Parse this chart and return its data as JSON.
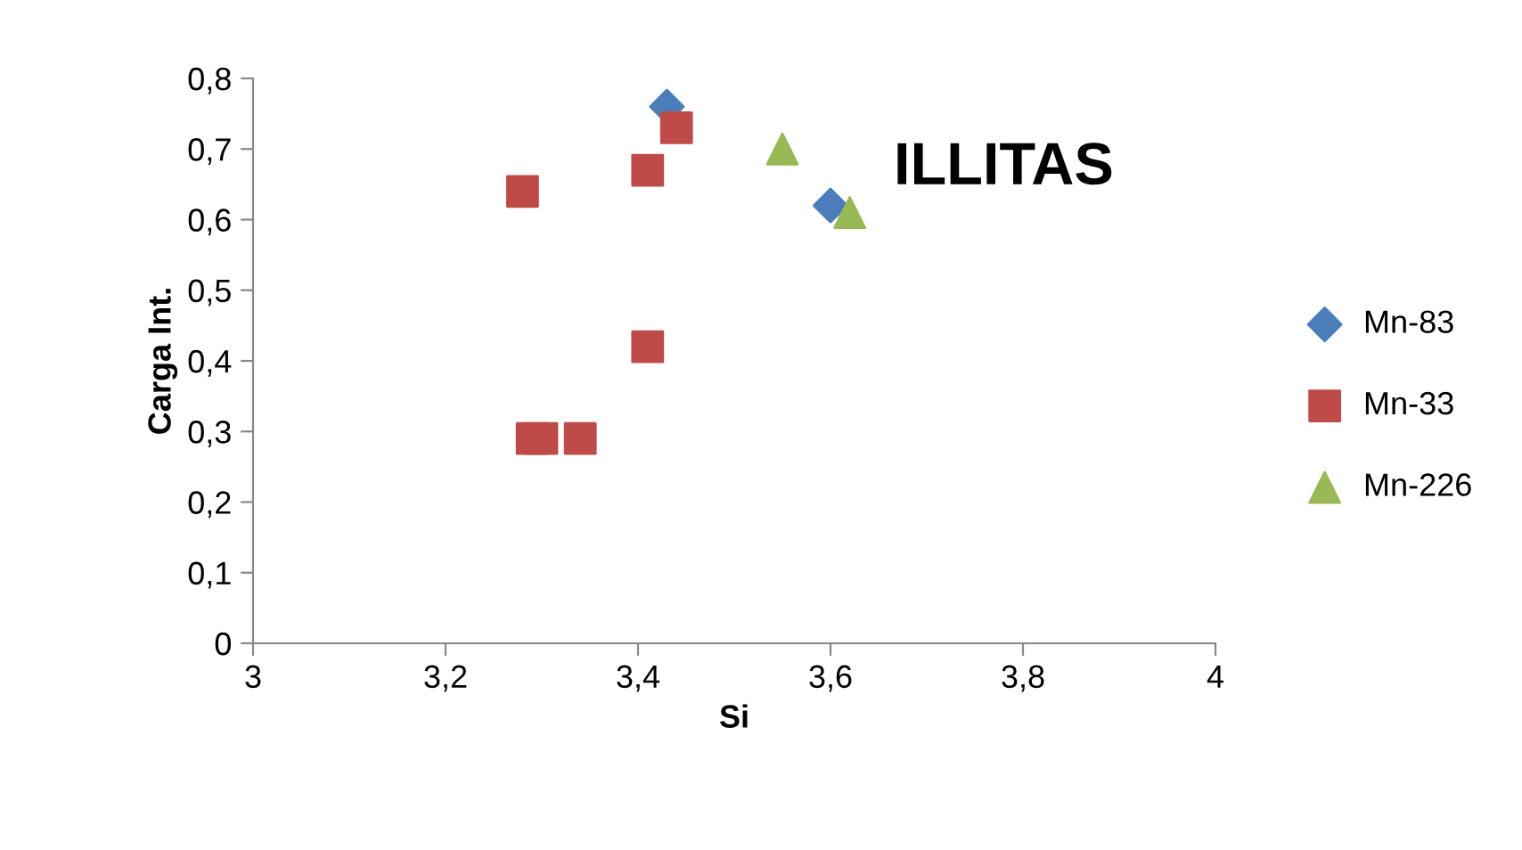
{
  "chart_data": {
    "type": "scatter",
    "title": "ILLITAS",
    "xlabel": "Si",
    "ylabel": "Carga Int.",
    "xlim": [
      3,
      4
    ],
    "ylim": [
      0,
      0.8
    ],
    "xticks": [
      {
        "value": 3,
        "label": "3"
      },
      {
        "value": 3.2,
        "label": "3,2"
      },
      {
        "value": 3.4,
        "label": "3,4"
      },
      {
        "value": 3.6,
        "label": "3,6"
      },
      {
        "value": 3.8,
        "label": "3,8"
      },
      {
        "value": 4,
        "label": "4"
      }
    ],
    "yticks": [
      {
        "value": 0,
        "label": "0"
      },
      {
        "value": 0.1,
        "label": "0,1"
      },
      {
        "value": 0.2,
        "label": "0,2"
      },
      {
        "value": 0.3,
        "label": "0,3"
      },
      {
        "value": 0.4,
        "label": "0,4"
      },
      {
        "value": 0.5,
        "label": "0,5"
      },
      {
        "value": 0.6,
        "label": "0,6"
      },
      {
        "value": 0.7,
        "label": "0,7"
      },
      {
        "value": 0.8,
        "label": "0,8"
      }
    ],
    "grid": false,
    "legend": "right",
    "series": [
      {
        "name": "Mn-83",
        "color": "#4a7ebb",
        "marker": "diamond",
        "x": [
          3.43,
          3.6
        ],
        "values": [
          0.76,
          0.62
        ]
      },
      {
        "name": "Mn-33",
        "color": "#be4b48",
        "marker": "square",
        "x": [
          3.44,
          3.41,
          3.28,
          3.41,
          3.29,
          3.3,
          3.34
        ],
        "values": [
          0.73,
          0.67,
          0.64,
          0.42,
          0.29,
          0.29,
          0.29
        ]
      },
      {
        "name": "Mn-226",
        "color": "#98b954",
        "marker": "triangle",
        "x": [
          3.55,
          3.62
        ],
        "values": [
          0.7,
          0.61
        ]
      }
    ]
  }
}
